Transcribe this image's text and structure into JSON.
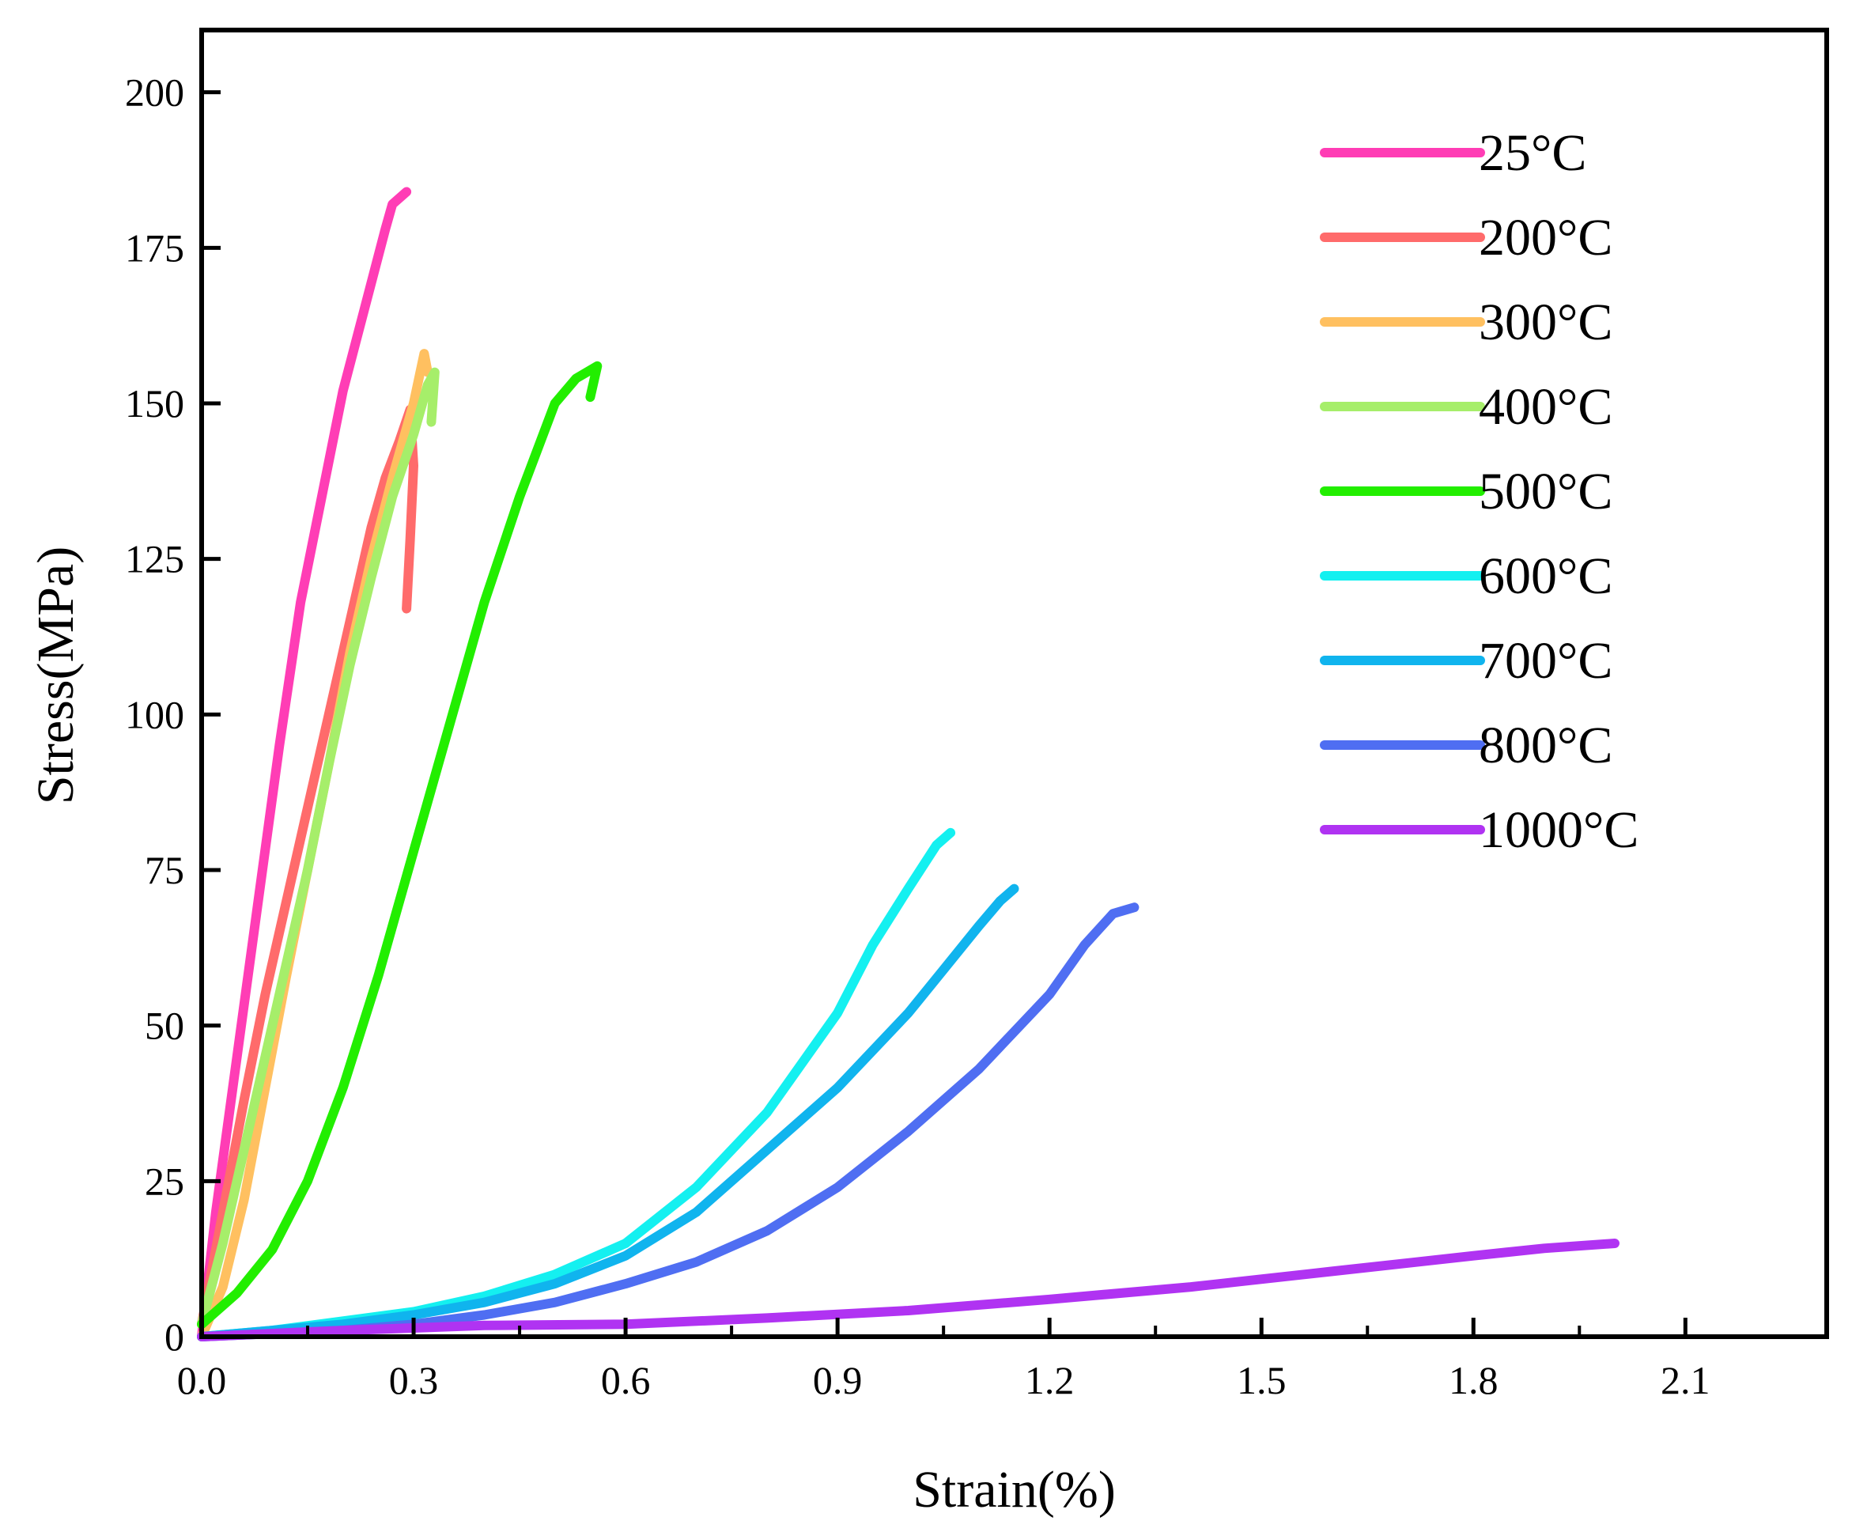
{
  "chart_data": {
    "type": "line",
    "title": "",
    "xlabel": "Strain(%)",
    "ylabel": "Stress(MPa)",
    "xlim": [
      0,
      2.3
    ],
    "ylim": [
      0,
      210
    ],
    "xticks": [
      0.0,
      0.3,
      0.6,
      0.9,
      1.2,
      1.5,
      1.8,
      2.1
    ],
    "xtick_labels": [
      "0.0",
      "0.3",
      "0.6",
      "0.9",
      "1.2",
      "1.5",
      "1.8",
      "2.1"
    ],
    "yticks": [
      0,
      25,
      50,
      75,
      100,
      125,
      150,
      175,
      200
    ],
    "ytick_labels": [
      "0",
      "25",
      "50",
      "75",
      "100",
      "125",
      "150",
      "175",
      "200"
    ],
    "grid": false,
    "legend_position": "top-right",
    "series": [
      {
        "name": "25°C",
        "color": "#FF3DB5",
        "points": [
          [
            0,
            0
          ],
          [
            0.02,
            20
          ],
          [
            0.05,
            45
          ],
          [
            0.08,
            70
          ],
          [
            0.11,
            95
          ],
          [
            0.14,
            118
          ],
          [
            0.17,
            135
          ],
          [
            0.2,
            152
          ],
          [
            0.23,
            165
          ],
          [
            0.26,
            178
          ],
          [
            0.27,
            182
          ],
          [
            0.29,
            184
          ]
        ]
      },
      {
        "name": "200°C",
        "color": "#FF6B6B",
        "points": [
          [
            0,
            2
          ],
          [
            0.03,
            20
          ],
          [
            0.06,
            38
          ],
          [
            0.09,
            55
          ],
          [
            0.12,
            70
          ],
          [
            0.15,
            85
          ],
          [
            0.18,
            100
          ],
          [
            0.21,
            115
          ],
          [
            0.24,
            130
          ],
          [
            0.26,
            138
          ],
          [
            0.28,
            144
          ],
          [
            0.295,
            149
          ],
          [
            0.3,
            140
          ],
          [
            0.295,
            128
          ],
          [
            0.29,
            117
          ]
        ]
      },
      {
        "name": "300°C",
        "color": "#FFC060",
        "points": [
          [
            0,
            0
          ],
          [
            0.03,
            8
          ],
          [
            0.06,
            22
          ],
          [
            0.09,
            40
          ],
          [
            0.12,
            58
          ],
          [
            0.15,
            75
          ],
          [
            0.18,
            92
          ],
          [
            0.21,
            110
          ],
          [
            0.24,
            125
          ],
          [
            0.27,
            138
          ],
          [
            0.3,
            150
          ],
          [
            0.315,
            158
          ],
          [
            0.32,
            155
          ]
        ]
      },
      {
        "name": "400°C",
        "color": "#A6EE6A",
        "points": [
          [
            0,
            2
          ],
          [
            0.03,
            15
          ],
          [
            0.06,
            30
          ],
          [
            0.09,
            45
          ],
          [
            0.12,
            60
          ],
          [
            0.15,
            75
          ],
          [
            0.18,
            92
          ],
          [
            0.21,
            108
          ],
          [
            0.24,
            122
          ],
          [
            0.27,
            135
          ],
          [
            0.3,
            145
          ],
          [
            0.32,
            153
          ],
          [
            0.33,
            155
          ],
          [
            0.325,
            147
          ]
        ]
      },
      {
        "name": "500°C",
        "color": "#22EE00",
        "points": [
          [
            0,
            2
          ],
          [
            0.05,
            7
          ],
          [
            0.1,
            14
          ],
          [
            0.15,
            25
          ],
          [
            0.2,
            40
          ],
          [
            0.25,
            58
          ],
          [
            0.3,
            78
          ],
          [
            0.35,
            98
          ],
          [
            0.4,
            118
          ],
          [
            0.45,
            135
          ],
          [
            0.5,
            150
          ],
          [
            0.53,
            154
          ],
          [
            0.56,
            156
          ],
          [
            0.55,
            151
          ]
        ]
      },
      {
        "name": "600°C",
        "color": "#14F0F0",
        "points": [
          [
            0,
            0
          ],
          [
            0.1,
            1
          ],
          [
            0.2,
            2.5
          ],
          [
            0.3,
            4
          ],
          [
            0.4,
            6.5
          ],
          [
            0.5,
            10
          ],
          [
            0.6,
            15
          ],
          [
            0.7,
            24
          ],
          [
            0.8,
            36
          ],
          [
            0.9,
            52
          ],
          [
            0.95,
            63
          ],
          [
            1.0,
            72
          ],
          [
            1.04,
            79
          ],
          [
            1.06,
            81
          ]
        ]
      },
      {
        "name": "700°C",
        "color": "#10B4EE",
        "points": [
          [
            0,
            0
          ],
          [
            0.1,
            1
          ],
          [
            0.2,
            2
          ],
          [
            0.3,
            3.5
          ],
          [
            0.4,
            5.5
          ],
          [
            0.5,
            8.5
          ],
          [
            0.6,
            13
          ],
          [
            0.7,
            20
          ],
          [
            0.8,
            30
          ],
          [
            0.9,
            40
          ],
          [
            1.0,
            52
          ],
          [
            1.05,
            59
          ],
          [
            1.1,
            66
          ],
          [
            1.13,
            70
          ],
          [
            1.15,
            72
          ]
        ]
      },
      {
        "name": "800°C",
        "color": "#4F6EF2",
        "points": [
          [
            0,
            0
          ],
          [
            0.1,
            0.5
          ],
          [
            0.2,
            1
          ],
          [
            0.3,
            2
          ],
          [
            0.4,
            3.5
          ],
          [
            0.5,
            5.5
          ],
          [
            0.6,
            8.5
          ],
          [
            0.7,
            12
          ],
          [
            0.8,
            17
          ],
          [
            0.9,
            24
          ],
          [
            1.0,
            33
          ],
          [
            1.1,
            43
          ],
          [
            1.2,
            55
          ],
          [
            1.25,
            63
          ],
          [
            1.29,
            68
          ],
          [
            1.32,
            69
          ]
        ]
      },
      {
        "name": "1000°C",
        "color": "#B033F2",
        "points": [
          [
            0,
            0
          ],
          [
            0.2,
            1
          ],
          [
            0.4,
            1.8
          ],
          [
            0.6,
            2
          ],
          [
            0.8,
            3
          ],
          [
            1.0,
            4.2
          ],
          [
            1.2,
            6
          ],
          [
            1.4,
            8
          ],
          [
            1.6,
            10.5
          ],
          [
            1.8,
            13
          ],
          [
            1.9,
            14.2
          ],
          [
            2.0,
            15
          ]
        ]
      }
    ]
  }
}
